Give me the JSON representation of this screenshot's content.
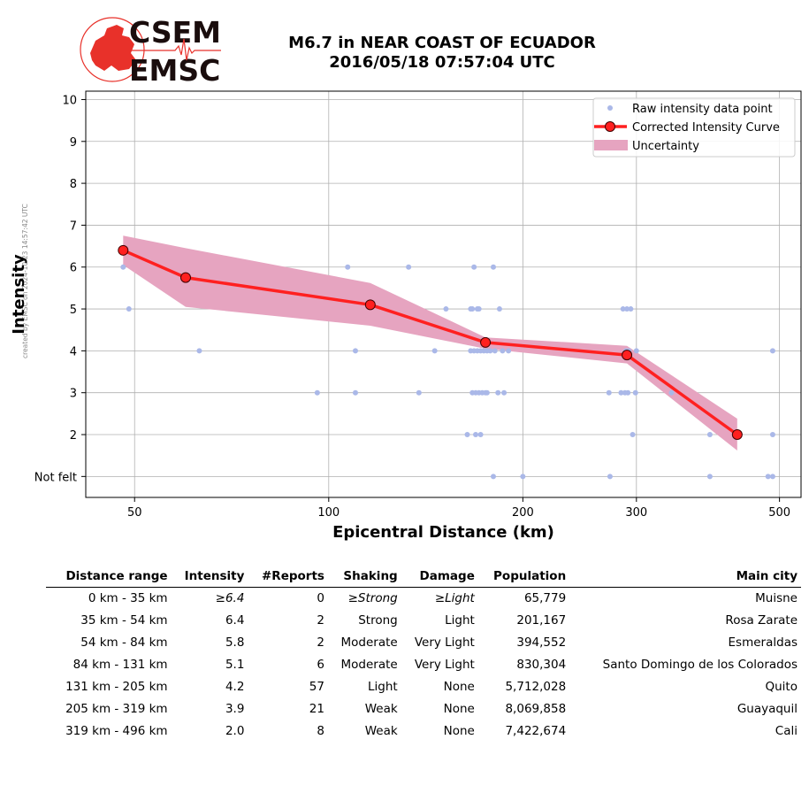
{
  "side_note": "created by EMSC on 2024-10-23 14:57:42 UTC",
  "logo": {
    "line1": "CSEM",
    "line2": "EMSC",
    "primary_color": "#e8312a",
    "text_color": "#1a0d0d"
  },
  "title_line1": "M6.7 in NEAR COAST OF ECUADOR",
  "title_line2": "2016/05/18 07:57:04 UTC",
  "chart_data": {
    "type": "scatter",
    "xlabel": "Epicentral Distance (km)",
    "ylabel": "Intensity",
    "x_scale": "log",
    "xlim": [
      42,
      540
    ],
    "ylim": [
      0.5,
      10.2
    ],
    "x_ticks": [
      50,
      100,
      200,
      300,
      500
    ],
    "x_tick_labels": [
      "50",
      "100",
      "200",
      "300",
      "500"
    ],
    "y_ticks": [
      1,
      2,
      3,
      4,
      5,
      6,
      7,
      8,
      9,
      10
    ],
    "y_tick_labels": [
      "Not felt",
      "2",
      "3",
      "4",
      "5",
      "6",
      "7",
      "8",
      "9",
      "10"
    ],
    "grid": true,
    "legend_position": "top-right",
    "legend": [
      "Raw intensity data point",
      "Corrected Intensity Curve",
      "Uncertainty"
    ],
    "colors": {
      "raw": "#aab8e8",
      "curve": "#ff2020",
      "marker_edge": "#400000",
      "uncertainty": "#e6a4c0"
    },
    "raw_points": [
      [
        48,
        6
      ],
      [
        49,
        5
      ],
      [
        63,
        4
      ],
      [
        96,
        3
      ],
      [
        107,
        6
      ],
      [
        110,
        4
      ],
      [
        110,
        3
      ],
      [
        133,
        6
      ],
      [
        138,
        3
      ],
      [
        146,
        4
      ],
      [
        152,
        5
      ],
      [
        164,
        2
      ],
      [
        166,
        4
      ],
      [
        166,
        5
      ],
      [
        167,
        3
      ],
      [
        167,
        5
      ],
      [
        168,
        4
      ],
      [
        168,
        6
      ],
      [
        169,
        3
      ],
      [
        169,
        2
      ],
      [
        170,
        5
      ],
      [
        170,
        4
      ],
      [
        171,
        3
      ],
      [
        171,
        5
      ],
      [
        172,
        2
      ],
      [
        172,
        4
      ],
      [
        173,
        3
      ],
      [
        174,
        4
      ],
      [
        175,
        3
      ],
      [
        176,
        4
      ],
      [
        176,
        3
      ],
      [
        178,
        4
      ],
      [
        180,
        6
      ],
      [
        180,
        1
      ],
      [
        181,
        4
      ],
      [
        183,
        3
      ],
      [
        184,
        5
      ],
      [
        186,
        4
      ],
      [
        187,
        3
      ],
      [
        190,
        4
      ],
      [
        200,
        1
      ],
      [
        272,
        3
      ],
      [
        273,
        1
      ],
      [
        284,
        3
      ],
      [
        286,
        5
      ],
      [
        288,
        3
      ],
      [
        289,
        4
      ],
      [
        290,
        5
      ],
      [
        291,
        3
      ],
      [
        292,
        4
      ],
      [
        294,
        5
      ],
      [
        296,
        2
      ],
      [
        299,
        3
      ],
      [
        300,
        4
      ],
      [
        340,
        3
      ],
      [
        390,
        2
      ],
      [
        390,
        1
      ],
      [
        480,
        1
      ],
      [
        488,
        1
      ],
      [
        488,
        4
      ],
      [
        488,
        2
      ]
    ],
    "curve": {
      "x": [
        48,
        60,
        116,
        175,
        290,
        430
      ],
      "y": [
        6.4,
        5.75,
        5.1,
        4.2,
        3.9,
        2.0
      ]
    },
    "uncertainty": {
      "x": [
        48,
        60,
        116,
        175,
        290,
        430
      ],
      "upper": [
        6.75,
        6.45,
        5.62,
        4.32,
        4.12,
        2.38
      ],
      "lower": [
        6.05,
        5.05,
        4.6,
        4.05,
        3.7,
        1.62
      ]
    }
  },
  "table": {
    "headers": [
      "Distance range",
      "Intensity",
      "#Reports",
      "Shaking",
      "Damage",
      "Population",
      "Main city"
    ],
    "rows": [
      {
        "range": "0 km -   35 km",
        "intensity": "≥6.4",
        "reports": "0",
        "shaking": "≥Strong",
        "damage": "≥Light",
        "population": "65,779",
        "city": "Muisne",
        "italic": true
      },
      {
        "range": "35 km -   54 km",
        "intensity": "6.4",
        "reports": "2",
        "shaking": "Strong",
        "damage": "Light",
        "population": "201,167",
        "city": "Rosa Zarate",
        "italic": false
      },
      {
        "range": "54 km -   84 km",
        "intensity": "5.8",
        "reports": "2",
        "shaking": "Moderate",
        "damage": "Very Light",
        "population": "394,552",
        "city": "Esmeraldas",
        "italic": false
      },
      {
        "range": "84 km -  131 km",
        "intensity": "5.1",
        "reports": "6",
        "shaking": "Moderate",
        "damage": "Very Light",
        "population": "830,304",
        "city": "Santo Domingo de los Colorados",
        "italic": false
      },
      {
        "range": "131 km -  205 km",
        "intensity": "4.2",
        "reports": "57",
        "shaking": "Light",
        "damage": "None",
        "population": "5,712,028",
        "city": "Quito",
        "italic": false
      },
      {
        "range": "205 km -  319 km",
        "intensity": "3.9",
        "reports": "21",
        "shaking": "Weak",
        "damage": "None",
        "population": "8,069,858",
        "city": "Guayaquil",
        "italic": false
      },
      {
        "range": "319 km -  496 km",
        "intensity": "2.0",
        "reports": "8",
        "shaking": "Weak",
        "damage": "None",
        "population": "7,422,674",
        "city": "Cali",
        "italic": false
      }
    ]
  }
}
